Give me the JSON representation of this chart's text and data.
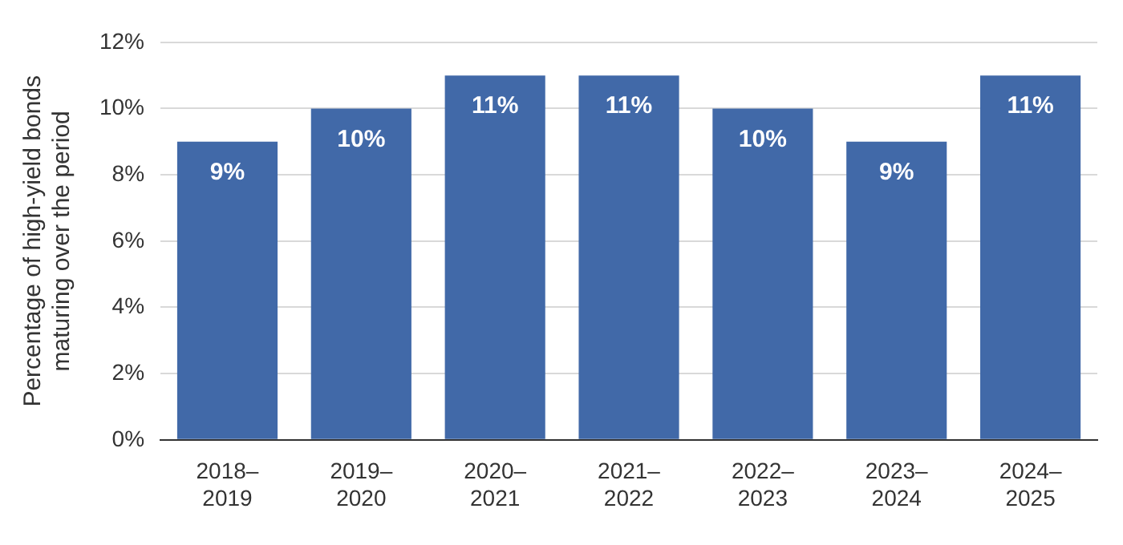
{
  "chart_data": {
    "type": "bar",
    "ylabel": "Percentage of high-yield bonds\nmaturing over the period",
    "categories": [
      "2018–2019",
      "2019–2020",
      "2020–2021",
      "2021–2022",
      "2022–2023",
      "2023–2024",
      "2024–2025"
    ],
    "values": [
      9,
      10,
      11,
      11,
      10,
      9,
      11
    ],
    "value_labels": [
      "9%",
      "10%",
      "11%",
      "11%",
      "10%",
      "9%",
      "11%"
    ],
    "color": "#4169a8",
    "ylim": [
      0,
      12
    ],
    "yticks": [
      {
        "value": 0,
        "label": "0%"
      },
      {
        "value": 2,
        "label": "2%"
      },
      {
        "value": 4,
        "label": "4%"
      },
      {
        "value": 6,
        "label": "6%"
      },
      {
        "value": 8,
        "label": "8%"
      },
      {
        "value": 10,
        "label": "10%"
      },
      {
        "value": 12,
        "label": "12%"
      }
    ],
    "grid": "y"
  }
}
